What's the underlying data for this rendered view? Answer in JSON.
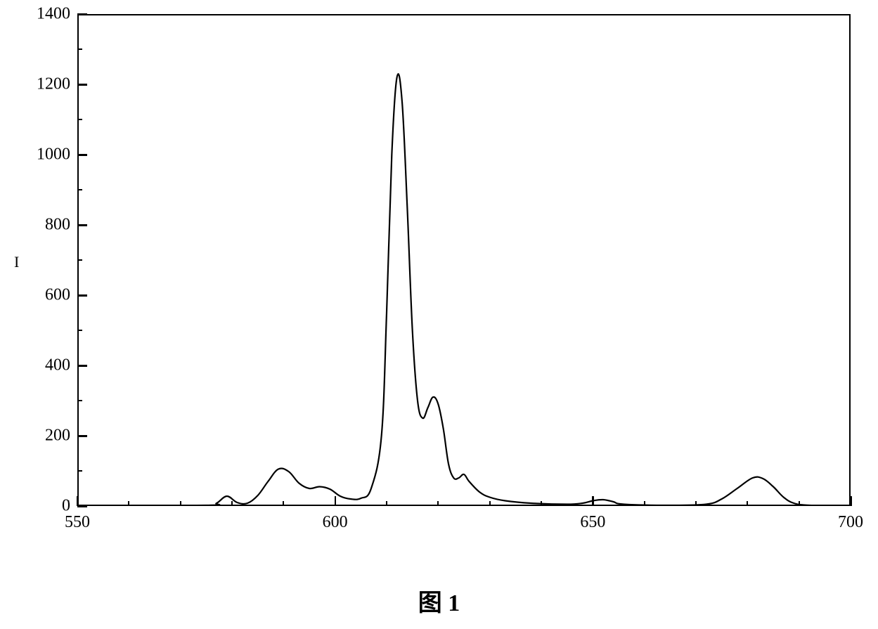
{
  "chart": {
    "type": "line",
    "caption": "图 1",
    "background_color": "#ffffff",
    "line_color": "#000000",
    "line_width": 2.2,
    "border_color": "#000000",
    "border_width": 2.5,
    "label_fontsize": 24,
    "caption_fontsize": 34,
    "xaxis": {
      "xlim": [
        550,
        700
      ],
      "major_ticks": [
        550,
        600,
        650,
        700
      ],
      "minor_tick_step": 10,
      "labels": [
        "550",
        "600",
        "650",
        "700"
      ]
    },
    "yaxis": {
      "ylim": [
        0,
        1400
      ],
      "major_ticks": [
        0,
        200,
        400,
        600,
        800,
        1000,
        1200,
        1400
      ],
      "minor_tick_step": 100,
      "labels": [
        "0",
        "200",
        "400",
        "600",
        "800",
        "1000",
        "1200",
        "1400"
      ],
      "left_label_hint": "I"
    },
    "zero_apostrophe": "'",
    "data_points": [
      [
        550,
        0
      ],
      [
        575,
        2
      ],
      [
        577,
        8
      ],
      [
        579,
        28
      ],
      [
        581,
        10
      ],
      [
        583,
        8
      ],
      [
        585,
        30
      ],
      [
        587,
        70
      ],
      [
        589,
        105
      ],
      [
        591,
        98
      ],
      [
        593,
        65
      ],
      [
        595,
        50
      ],
      [
        597,
        55
      ],
      [
        599,
        48
      ],
      [
        601,
        28
      ],
      [
        603,
        20
      ],
      [
        605,
        22
      ],
      [
        607,
        50
      ],
      [
        609,
        200
      ],
      [
        610,
        550
      ],
      [
        611,
        1000
      ],
      [
        612,
        1220
      ],
      [
        613,
        1150
      ],
      [
        614,
        850
      ],
      [
        615,
        500
      ],
      [
        616,
        300
      ],
      [
        617,
        250
      ],
      [
        618,
        280
      ],
      [
        619,
        310
      ],
      [
        620,
        290
      ],
      [
        621,
        220
      ],
      [
        622,
        120
      ],
      [
        623,
        80
      ],
      [
        624,
        80
      ],
      [
        625,
        90
      ],
      [
        626,
        70
      ],
      [
        628,
        40
      ],
      [
        630,
        25
      ],
      [
        633,
        15
      ],
      [
        638,
        8
      ],
      [
        645,
        5
      ],
      [
        648,
        8
      ],
      [
        650,
        15
      ],
      [
        652,
        18
      ],
      [
        654,
        12
      ],
      [
        656,
        5
      ],
      [
        665,
        2
      ],
      [
        672,
        5
      ],
      [
        675,
        20
      ],
      [
        678,
        50
      ],
      [
        681,
        80
      ],
      [
        683,
        78
      ],
      [
        685,
        55
      ],
      [
        687,
        25
      ],
      [
        689,
        8
      ],
      [
        692,
        2
      ],
      [
        700,
        0
      ]
    ]
  }
}
